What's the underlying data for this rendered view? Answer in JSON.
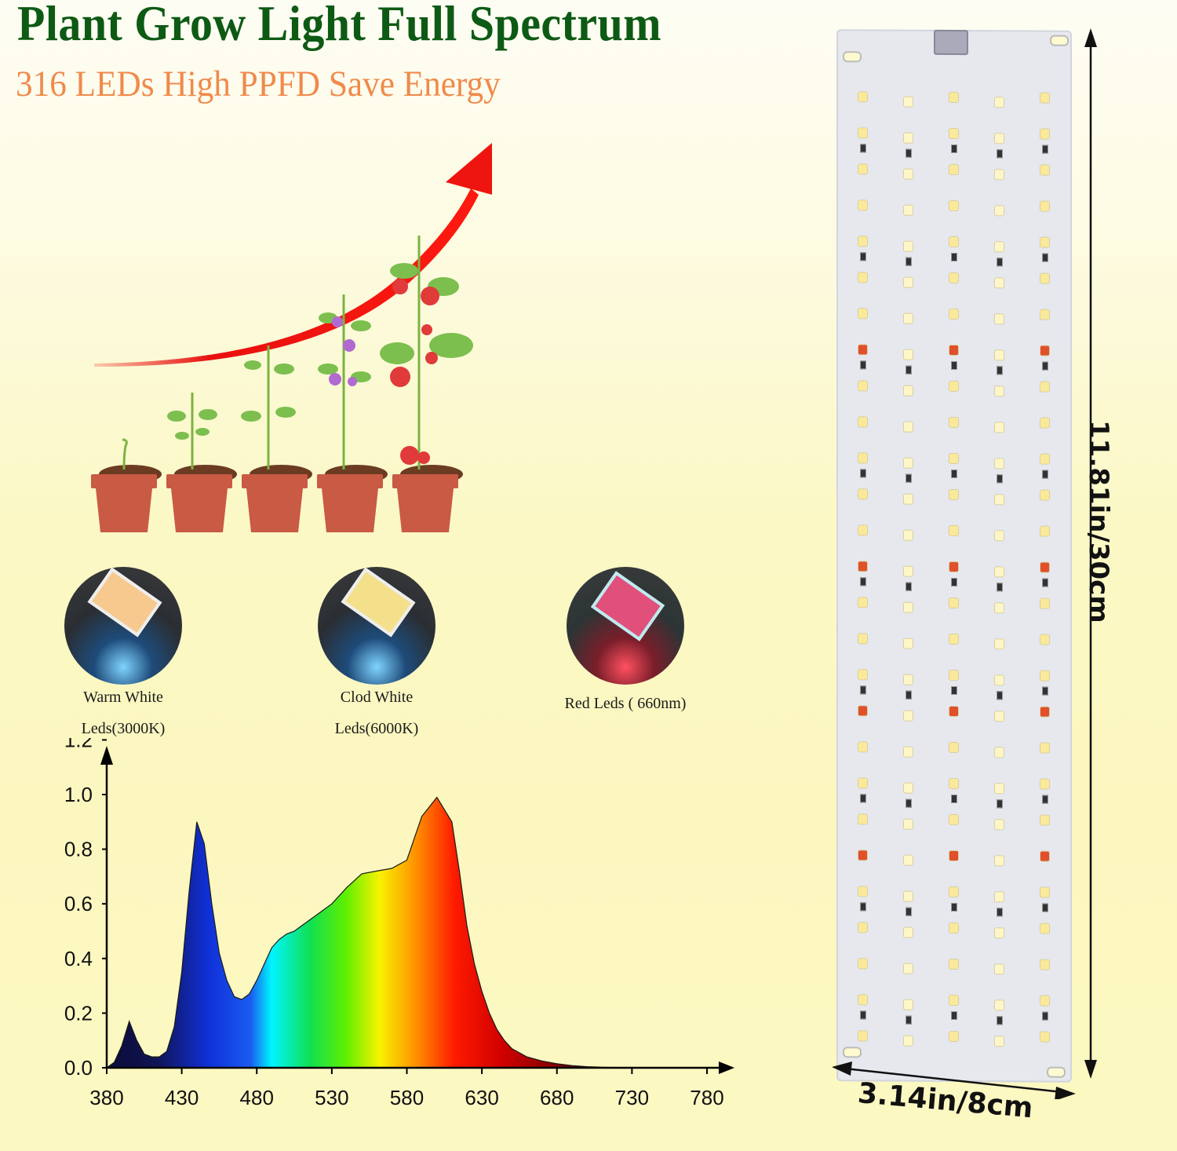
{
  "header": {
    "title": "Plant Grow Light Full Spectrum",
    "subtitle": "316 LEDs High PPFD Save Energy",
    "title_color": "#0d5a14",
    "subtitle_color": "#f08a4b"
  },
  "growth_illustration": {
    "stages": [
      "seed",
      "seedling",
      "young-plant",
      "flowering-plant",
      "fruiting-plant"
    ],
    "arrow_color": "#e8100f",
    "pot_color": "#c95a44"
  },
  "led_types": [
    {
      "line1": "Warm White",
      "line2": "Leds(3000K)",
      "chip_color": "#f7c98f"
    },
    {
      "line1": "Clod White",
      "line2": "Leds(6000K)",
      "chip_color": "#f4e08a"
    },
    {
      "line1": "Red Leds ( 660nm)",
      "line2": "",
      "chip_color": "#e0507a"
    }
  ],
  "panel": {
    "height_label": "11.81in/30cm",
    "width_label": "3.14in/8cm",
    "columns": 5,
    "led_count": 316,
    "connector": "USB-C"
  },
  "chart_data": {
    "type": "area",
    "title": "",
    "xlabel": "",
    "ylabel": "",
    "x_ticks": [
      380,
      430,
      480,
      530,
      580,
      630,
      680,
      730,
      780
    ],
    "y_ticks": [
      "0.0",
      "0.2",
      "0.4",
      "0.6",
      "0.8",
      "1.0",
      "1.2"
    ],
    "xlim": [
      380,
      800
    ],
    "ylim": [
      0,
      1.3
    ],
    "grid": false,
    "legend": null,
    "fill": "visible-spectrum-gradient",
    "x": [
      380,
      385,
      390,
      395,
      400,
      405,
      410,
      415,
      420,
      425,
      430,
      435,
      440,
      445,
      450,
      455,
      460,
      465,
      470,
      475,
      480,
      485,
      490,
      495,
      500,
      505,
      510,
      520,
      530,
      540,
      550,
      560,
      570,
      580,
      590,
      600,
      610,
      615,
      620,
      625,
      630,
      635,
      640,
      645,
      650,
      660,
      670,
      680,
      690,
      700,
      710,
      720,
      730,
      740,
      750,
      760,
      770,
      780
    ],
    "values": [
      0.0,
      0.02,
      0.08,
      0.17,
      0.1,
      0.05,
      0.04,
      0.04,
      0.06,
      0.15,
      0.35,
      0.65,
      0.9,
      0.82,
      0.6,
      0.42,
      0.32,
      0.26,
      0.25,
      0.27,
      0.32,
      0.38,
      0.44,
      0.47,
      0.49,
      0.5,
      0.52,
      0.56,
      0.6,
      0.66,
      0.71,
      0.72,
      0.73,
      0.76,
      0.92,
      0.99,
      0.9,
      0.72,
      0.52,
      0.38,
      0.28,
      0.2,
      0.14,
      0.1,
      0.07,
      0.04,
      0.025,
      0.015,
      0.008,
      0.004,
      0.002,
      0.001,
      0.0,
      0.0,
      0.0,
      0.0,
      0.0,
      0.0
    ],
    "annotations": []
  }
}
